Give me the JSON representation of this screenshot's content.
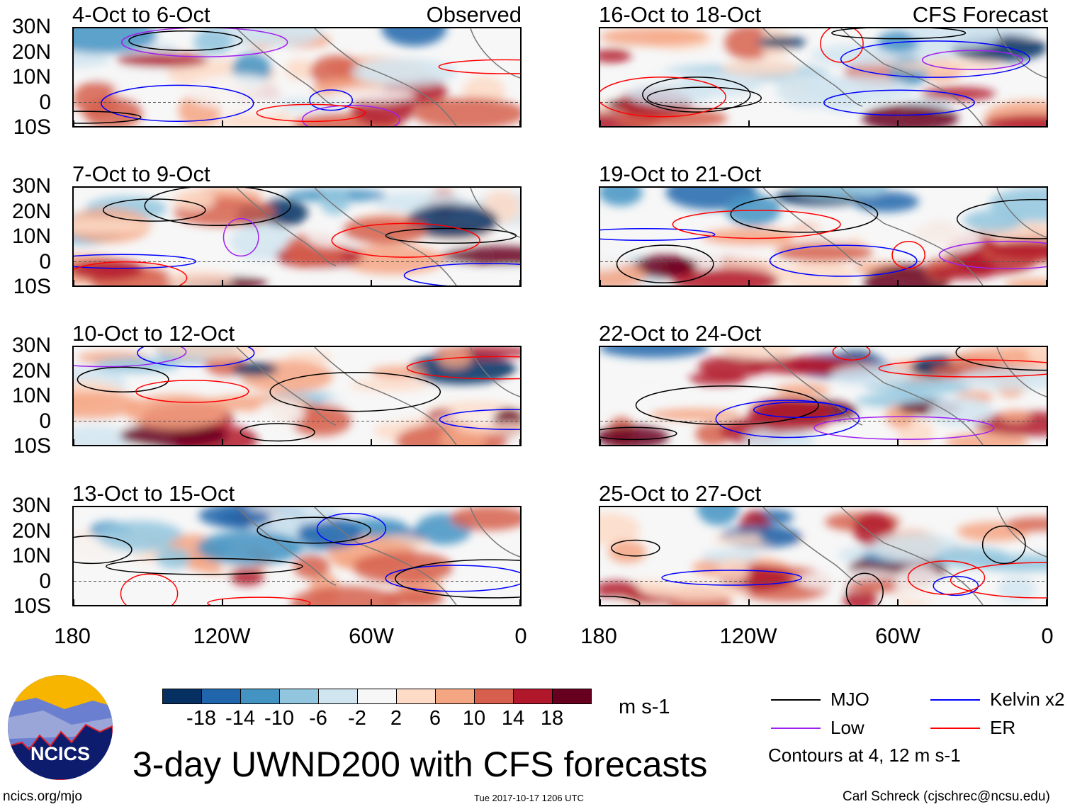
{
  "panels": [
    {
      "title": "4-Oct to 6-Oct",
      "tag": "Observed"
    },
    {
      "title": "16-Oct to 18-Oct",
      "tag": "CFS Forecast"
    },
    {
      "title": "7-Oct to 9-Oct",
      "tag": ""
    },
    {
      "title": "19-Oct to 21-Oct",
      "tag": ""
    },
    {
      "title": "10-Oct to 12-Oct",
      "tag": ""
    },
    {
      "title": "22-Oct to 24-Oct",
      "tag": ""
    },
    {
      "title": "13-Oct to 15-Oct",
      "tag": ""
    },
    {
      "title": "25-Oct to 27-Oct",
      "tag": ""
    }
  ],
  "lat_labels": [
    "30N",
    "20N",
    "10N",
    "0",
    "10S"
  ],
  "lon_labels": [
    "180",
    "120W",
    "60W",
    "0"
  ],
  "colorbar": {
    "colors": [
      "#053061",
      "#2166ac",
      "#4393c3",
      "#92c5de",
      "#d1e5f0",
      "#f7f7f7",
      "#fddbc7",
      "#f4a582",
      "#d6604d",
      "#b2182b",
      "#67001f"
    ],
    "ticks": [
      "-18",
      "-14",
      "-10",
      "-6",
      "-2",
      "2",
      "6",
      "10",
      "14",
      "18"
    ],
    "units": "m s-1"
  },
  "legend": {
    "items": [
      {
        "label": "MJO",
        "color": "#000000"
      },
      {
        "label": "Kelvin x2",
        "color": "#0000ff"
      },
      {
        "label": "Low",
        "color": "#a020f0"
      },
      {
        "label": "ER",
        "color": "#ff0000"
      }
    ],
    "contours_note": "Contours at 4, 12 m s-1"
  },
  "title": "3-day UWND200 with CFS forecasts",
  "logo_text": "NCICS",
  "footer": {
    "url": "ncics.org/mjo",
    "timestamp": "Tue 2017-10-17 1206 UTC",
    "author": "Carl Schreck (cjschrec@ncsu.edu)"
  }
}
